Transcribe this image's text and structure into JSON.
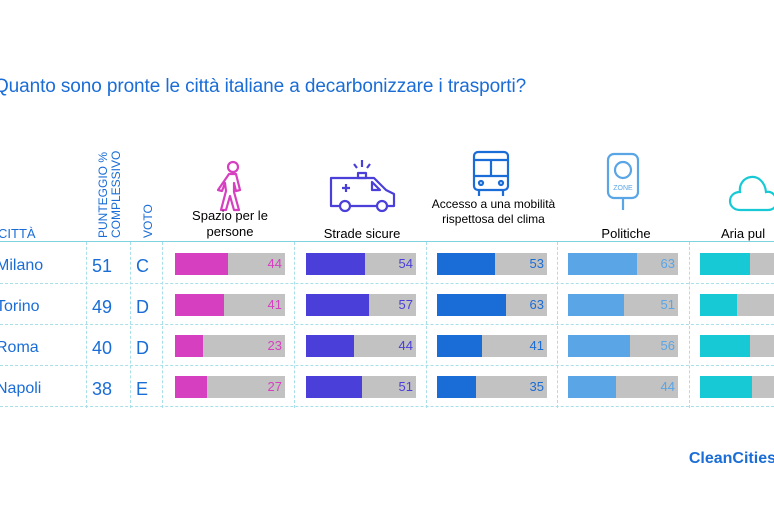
{
  "title": "Quanto sono pronte le città italiane a decarbonizzare i trasporti?",
  "headers": {
    "city": "CITTÀ",
    "score": "PUNTEGGIO % COMPLESSIVO",
    "grade": "VOTO"
  },
  "categories": [
    {
      "label": "Spazio per le persone",
      "color": "#d63fbf",
      "text_color": "#d63fbf",
      "icon": "walking-person-icon"
    },
    {
      "label": "Strade sicure",
      "color": "#4a3fd9",
      "text_color": "#4a3fd9",
      "icon": "ambulance-icon"
    },
    {
      "label": "Accesso a una mobilità rispettosa del clima",
      "color": "#1a6dd6",
      "text_color": "#1a6dd6",
      "icon": "bus-icon"
    },
    {
      "label": "Politiche",
      "color": "#5aa5e6",
      "text_color": "#5aa5e6",
      "icon": "zone-sign-icon"
    },
    {
      "label": "Aria pul",
      "color": "#17c9d4",
      "text_color": "#17c9d4",
      "icon": "cloud-icon"
    }
  ],
  "rows": [
    {
      "city": "Milano",
      "score": "51",
      "grade": "C",
      "values": [
        44,
        54,
        53,
        63,
        45
      ]
    },
    {
      "city": "Torino",
      "score": "49",
      "grade": "D",
      "values": [
        41,
        57,
        63,
        51,
        34
      ]
    },
    {
      "city": "Roma",
      "score": "40",
      "grade": "D",
      "values": [
        23,
        44,
        41,
        56,
        45
      ]
    },
    {
      "city": "Napoli",
      "score": "38",
      "grade": "E",
      "values": [
        27,
        51,
        35,
        44,
        47
      ]
    }
  ],
  "logo": "CleanCities",
  "chart_data": {
    "type": "bar",
    "title": "Quanto sono pronte le città italiane a decarbonizzare i trasporti?",
    "categories": [
      "Milano",
      "Torino",
      "Roma",
      "Napoli"
    ],
    "series": [
      {
        "name": "Spazio per le persone",
        "values": [
          44,
          41,
          23,
          27
        ]
      },
      {
        "name": "Strade sicure",
        "values": [
          54,
          57,
          44,
          51
        ]
      },
      {
        "name": "Accesso a una mobilità rispettosa del clima",
        "values": [
          53,
          63,
          41,
          35
        ]
      },
      {
        "name": "Politiche",
        "values": [
          63,
          51,
          56,
          44
        ]
      }
    ],
    "overall_score": [
      51,
      49,
      40,
      38
    ],
    "grade": [
      "C",
      "D",
      "D",
      "E"
    ],
    "ylim": [
      0,
      100
    ]
  }
}
